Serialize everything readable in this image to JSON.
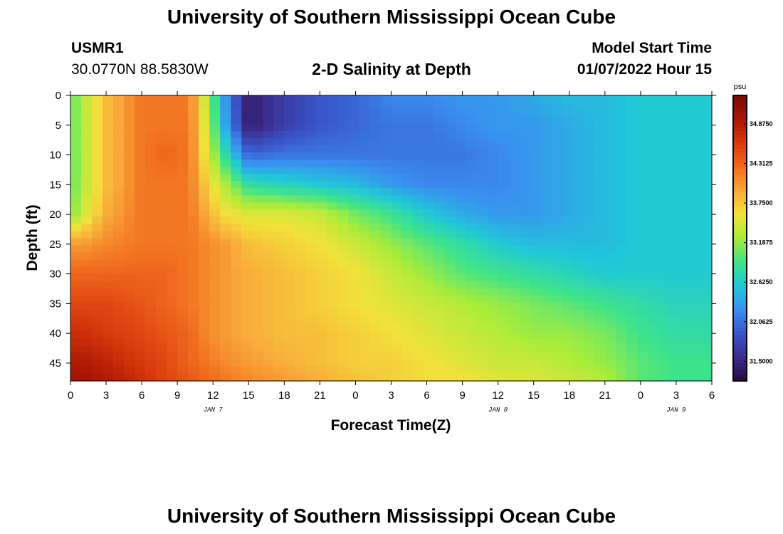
{
  "page": {
    "title": "University of Southern Mississippi Ocean Cube",
    "bottom_title": "University of Southern Mississippi Ocean Cube",
    "station": "USMR1",
    "coords": "30.0770N  88.5830W",
    "subtitle": "2-D Salinity at Depth",
    "start_label": "Model Start Time",
    "start_value": "01/07/2022 Hour 15"
  },
  "chart_data": {
    "type": "heatmap",
    "title": "2-D Salinity at Depth",
    "xlabel": "Forecast Time(Z)",
    "ylabel": "Depth (ft)",
    "x_tick_labels": [
      "0",
      "3",
      "6",
      "9",
      "12",
      "15",
      "18",
      "21",
      "0",
      "3",
      "6",
      "9",
      "12",
      "15",
      "18",
      "21",
      "0",
      "3",
      "6"
    ],
    "x_range_hours": [
      0,
      54
    ],
    "date_labels": [
      {
        "text": "JAN 7",
        "hour": 12
      },
      {
        "text": "JAN 8",
        "hour": 36
      },
      {
        "text": "JAN 9",
        "hour": 51
      }
    ],
    "y_tick_labels": [
      "0",
      "5",
      "10",
      "15",
      "20",
      "25",
      "30",
      "35",
      "40",
      "45"
    ],
    "y_range_ft": [
      0,
      48
    ],
    "colorbar": {
      "unit": "psu",
      "labels": [
        "34.8750",
        "34.3125",
        "33.7500",
        "33.1875",
        "32.6250",
        "32.0625",
        "31.5000"
      ],
      "range": [
        31.22,
        35.28
      ],
      "colors": [
        "#2a0a3c",
        "#3b2d8f",
        "#3a55c8",
        "#3a8ef0",
        "#20c8d8",
        "#3ee38a",
        "#a8ec3a",
        "#f2e23a",
        "#f9a93a",
        "#f06a1e",
        "#d8380c",
        "#a81604",
        "#7a0a04"
      ]
    },
    "grid": false,
    "salinity_field": {
      "hours": [
        0,
        1,
        3,
        6,
        8,
        10,
        11.5,
        13,
        15,
        18,
        21,
        24,
        27,
        30,
        33,
        36,
        39,
        42,
        45,
        48,
        51,
        54
      ],
      "depths": [
        0,
        5,
        10,
        15,
        20,
        25,
        30,
        35,
        40,
        45,
        48
      ],
      "values": [
        [
          33.0,
          33.3,
          33.8,
          34.2,
          34.2,
          34.2,
          33.3,
          32.3,
          31.4,
          31.7,
          31.9,
          32.0,
          32.2,
          32.2,
          32.3,
          32.3,
          32.4,
          32.5,
          32.5,
          32.6,
          32.6,
          32.6
        ],
        [
          33.0,
          33.3,
          33.8,
          34.2,
          34.2,
          34.2,
          33.4,
          32.4,
          31.4,
          31.7,
          31.9,
          32.0,
          32.1,
          32.1,
          32.2,
          32.3,
          32.3,
          32.4,
          32.5,
          32.6,
          32.6,
          32.6
        ],
        [
          33.0,
          33.3,
          33.8,
          34.2,
          34.3,
          34.2,
          33.5,
          32.8,
          32.0,
          32.1,
          32.1,
          32.1,
          32.1,
          32.1,
          32.1,
          32.2,
          32.3,
          32.4,
          32.5,
          32.6,
          32.6,
          32.6
        ],
        [
          33.0,
          33.3,
          33.8,
          34.2,
          34.2,
          34.2,
          33.7,
          33.3,
          32.8,
          32.7,
          32.6,
          32.5,
          32.3,
          32.2,
          32.2,
          32.2,
          32.3,
          32.4,
          32.5,
          32.6,
          32.6,
          32.6
        ],
        [
          33.1,
          33.4,
          33.9,
          34.2,
          34.2,
          34.2,
          33.9,
          33.6,
          33.5,
          33.5,
          33.4,
          33.1,
          32.9,
          32.6,
          32.4,
          32.3,
          32.3,
          32.4,
          32.5,
          32.6,
          32.6,
          32.6
        ],
        [
          34.0,
          34.0,
          34.1,
          34.2,
          34.2,
          34.2,
          34.1,
          34.0,
          33.8,
          33.7,
          33.6,
          33.4,
          33.2,
          33.0,
          32.8,
          32.6,
          32.5,
          32.5,
          32.5,
          32.6,
          32.6,
          32.6
        ],
        [
          34.3,
          34.3,
          34.3,
          34.3,
          34.3,
          34.2,
          34.1,
          34.0,
          33.9,
          33.8,
          33.7,
          33.6,
          33.4,
          33.2,
          33.0,
          32.9,
          32.8,
          32.7,
          32.6,
          32.6,
          32.6,
          32.6
        ],
        [
          34.5,
          34.5,
          34.5,
          34.4,
          34.3,
          34.2,
          34.1,
          34.0,
          33.9,
          33.8,
          33.7,
          33.6,
          33.5,
          33.4,
          33.3,
          33.2,
          33.1,
          33.0,
          32.9,
          32.8,
          32.7,
          32.7
        ],
        [
          34.7,
          34.7,
          34.6,
          34.5,
          34.4,
          34.3,
          34.1,
          34.0,
          33.9,
          33.8,
          33.8,
          33.7,
          33.6,
          33.5,
          33.4,
          33.3,
          33.2,
          33.2,
          33.1,
          32.9,
          32.8,
          32.8
        ],
        [
          34.9,
          34.9,
          34.8,
          34.6,
          34.5,
          34.3,
          34.2,
          34.1,
          34.0,
          33.9,
          33.8,
          33.7,
          33.7,
          33.6,
          33.5,
          33.4,
          33.4,
          33.3,
          33.2,
          33.0,
          32.9,
          32.9
        ],
        [
          35.0,
          35.0,
          34.9,
          34.7,
          34.5,
          34.4,
          34.3,
          34.2,
          34.1,
          34.0,
          33.9,
          33.8,
          33.7,
          33.6,
          33.6,
          33.5,
          33.5,
          33.4,
          33.3,
          33.0,
          32.9,
          32.9
        ]
      ]
    }
  }
}
